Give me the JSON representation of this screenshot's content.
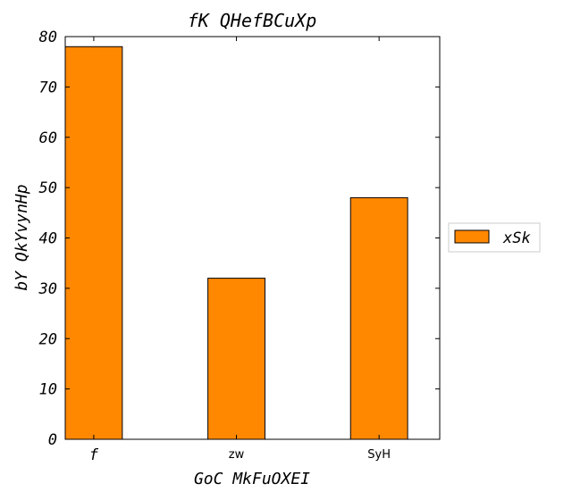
{
  "chart_data": {
    "type": "bar",
    "title": "fK QHefBCuXp",
    "xlabel": "GoC MkFuOXEI",
    "ylabel": "bY QkYvynHp",
    "categories": [
      "f",
      "zw",
      "SyH"
    ],
    "series": [
      {
        "name": "xSk",
        "values": [
          78,
          32,
          48
        ],
        "color": "#ff8800"
      }
    ],
    "ylim": [
      0,
      80
    ],
    "yticks": [
      "0",
      "10",
      "20",
      "30",
      "40",
      "50",
      "60",
      "70",
      "80"
    ],
    "grid": false,
    "legend": "center-right"
  }
}
